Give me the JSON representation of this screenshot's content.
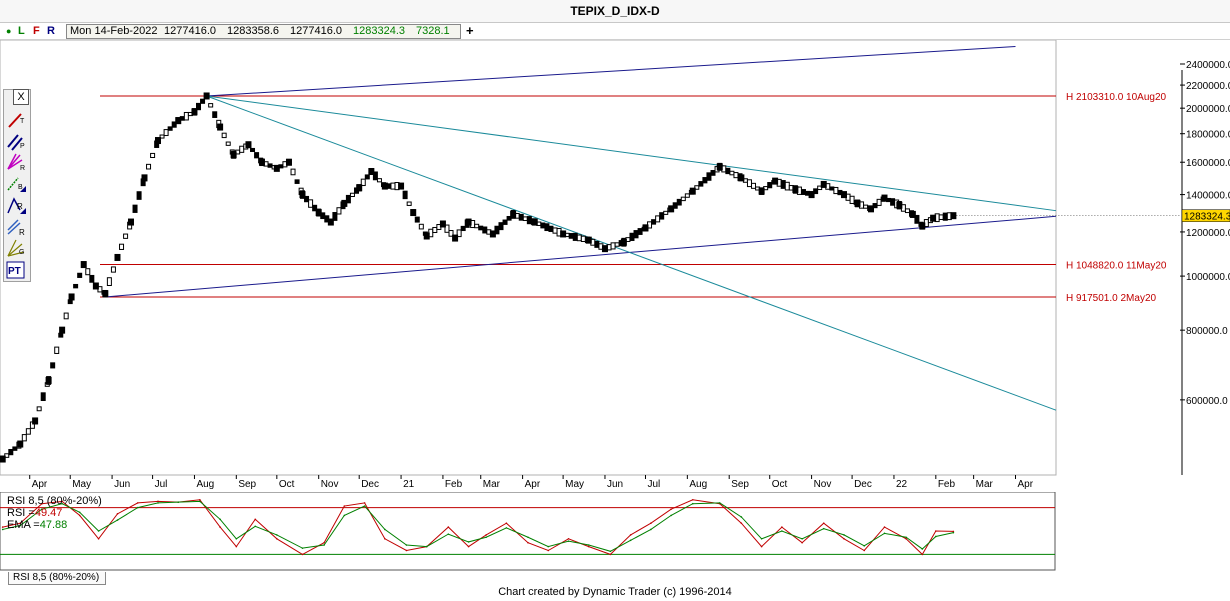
{
  "window": {
    "title": "TEPIX_D_IDX-D"
  },
  "infobar": {
    "toggles": [
      "L",
      "F",
      "R"
    ],
    "date": "Mon 14-Feb-2022",
    "open": "1277416.0",
    "high": "1283358.6",
    "low": "1277416.0",
    "close": "1283324.3",
    "change": "7328.1",
    "add_symbol": "+"
  },
  "toolbar": {
    "close_label": "X",
    "tools": [
      "trendline-tool-icon",
      "parallel-lines-tool-icon",
      "pitchfork-tool-icon",
      "box-tool-icon",
      "retracement-tool-icon",
      "projection-tool-icon",
      "gann-fan-tool-icon",
      "pt-tool-icon"
    ],
    "tool_letters": [
      "T",
      "P",
      "R",
      "B",
      "R",
      "R",
      "G",
      "PT"
    ]
  },
  "chart_data": [
    {
      "type": "line",
      "title": "",
      "xlabel": "",
      "ylabel": "",
      "y_scale": "log",
      "ylim": [
        440000,
        2650000
      ],
      "x_range": [
        "2020-03-10",
        "2022-05-01"
      ],
      "x_ticks": [
        {
          "label": "Apr",
          "date": "2020-04-01"
        },
        {
          "label": "May",
          "date": "2020-05-01"
        },
        {
          "label": "Jun",
          "date": "2020-06-01"
        },
        {
          "label": "Jul",
          "date": "2020-07-01"
        },
        {
          "label": "Aug",
          "date": "2020-08-01"
        },
        {
          "label": "Sep",
          "date": "2020-09-01"
        },
        {
          "label": "Oct",
          "date": "2020-10-01"
        },
        {
          "label": "Nov",
          "date": "2020-11-01"
        },
        {
          "label": "Dec",
          "date": "2020-12-01"
        },
        {
          "label": "21",
          "date": "2021-01-01"
        },
        {
          "label": "Feb",
          "date": "2021-02-01"
        },
        {
          "label": "Mar",
          "date": "2021-03-01"
        },
        {
          "label": "Apr",
          "date": "2021-04-01"
        },
        {
          "label": "May",
          "date": "2021-05-01"
        },
        {
          "label": "Jun",
          "date": "2021-06-01"
        },
        {
          "label": "Jul",
          "date": "2021-07-01"
        },
        {
          "label": "Aug",
          "date": "2021-08-01"
        },
        {
          "label": "Sep",
          "date": "2021-09-01"
        },
        {
          "label": "Oct",
          "date": "2021-10-01"
        },
        {
          "label": "Nov",
          "date": "2021-11-01"
        },
        {
          "label": "Dec",
          "date": "2021-12-01"
        },
        {
          "label": "22",
          "date": "2022-01-01"
        },
        {
          "label": "Feb",
          "date": "2022-02-01"
        },
        {
          "label": "Mar",
          "date": "2022-03-01"
        },
        {
          "label": "Apr",
          "date": "2022-04-01"
        }
      ],
      "y_ticks": [
        {
          "label": "2400000.0",
          "value": 2400000
        },
        {
          "label": "2200000.0",
          "value": 2200000
        },
        {
          "label": "2000000.0",
          "value": 2000000
        },
        {
          "label": "1800000.0",
          "value": 1800000
        },
        {
          "label": "1600000.0",
          "value": 1600000
        },
        {
          "label": "1400000.0",
          "value": 1400000
        },
        {
          "label": "1200000.0",
          "value": 1200000
        },
        {
          "label": "1000000.0",
          "value": 1000000
        },
        {
          "label": "800000.0",
          "value": 800000
        },
        {
          "label": "600000.0",
          "value": 600000
        }
      ],
      "price_series": [
        {
          "x": "2020-03-12",
          "y": 470000
        },
        {
          "x": "2020-03-25",
          "y": 500000
        },
        {
          "x": "2020-04-05",
          "y": 550000
        },
        {
          "x": "2020-04-15",
          "y": 650000
        },
        {
          "x": "2020-04-25",
          "y": 800000
        },
        {
          "x": "2020-05-02",
          "y": 917501
        },
        {
          "x": "2020-05-11",
          "y": 1048820
        },
        {
          "x": "2020-05-20",
          "y": 960000
        },
        {
          "x": "2020-05-27",
          "y": 930000
        },
        {
          "x": "2020-06-05",
          "y": 1080000
        },
        {
          "x": "2020-06-15",
          "y": 1250000
        },
        {
          "x": "2020-06-25",
          "y": 1500000
        },
        {
          "x": "2020-07-05",
          "y": 1750000
        },
        {
          "x": "2020-07-20",
          "y": 1900000
        },
        {
          "x": "2020-08-01",
          "y": 1970000
        },
        {
          "x": "2020-08-10",
          "y": 2103310
        },
        {
          "x": "2020-08-20",
          "y": 1850000
        },
        {
          "x": "2020-08-30",
          "y": 1650000
        },
        {
          "x": "2020-09-10",
          "y": 1720000
        },
        {
          "x": "2020-09-20",
          "y": 1600000
        },
        {
          "x": "2020-10-01",
          "y": 1560000
        },
        {
          "x": "2020-10-10",
          "y": 1600000
        },
        {
          "x": "2020-10-20",
          "y": 1400000
        },
        {
          "x": "2020-11-01",
          "y": 1300000
        },
        {
          "x": "2020-11-10",
          "y": 1250000
        },
        {
          "x": "2020-11-20",
          "y": 1350000
        },
        {
          "x": "2020-12-01",
          "y": 1440000
        },
        {
          "x": "2020-12-10",
          "y": 1540000
        },
        {
          "x": "2020-12-20",
          "y": 1450000
        },
        {
          "x": "2021-01-01",
          "y": 1450000
        },
        {
          "x": "2021-01-10",
          "y": 1300000
        },
        {
          "x": "2021-01-20",
          "y": 1180000
        },
        {
          "x": "2021-02-01",
          "y": 1240000
        },
        {
          "x": "2021-02-10",
          "y": 1170000
        },
        {
          "x": "2021-02-20",
          "y": 1250000
        },
        {
          "x": "2021-03-10",
          "y": 1190000
        },
        {
          "x": "2021-03-25",
          "y": 1290000
        },
        {
          "x": "2021-04-10",
          "y": 1250000
        },
        {
          "x": "2021-05-01",
          "y": 1190000
        },
        {
          "x": "2021-05-20",
          "y": 1160000
        },
        {
          "x": "2021-06-01",
          "y": 1120000
        },
        {
          "x": "2021-06-15",
          "y": 1150000
        },
        {
          "x": "2021-07-01",
          "y": 1220000
        },
        {
          "x": "2021-07-20",
          "y": 1320000
        },
        {
          "x": "2021-08-05",
          "y": 1420000
        },
        {
          "x": "2021-08-25",
          "y": 1570000
        },
        {
          "x": "2021-09-10",
          "y": 1500000
        },
        {
          "x": "2021-09-25",
          "y": 1420000
        },
        {
          "x": "2021-10-05",
          "y": 1480000
        },
        {
          "x": "2021-10-20",
          "y": 1430000
        },
        {
          "x": "2021-11-01",
          "y": 1400000
        },
        {
          "x": "2021-11-10",
          "y": 1460000
        },
        {
          "x": "2021-11-25",
          "y": 1400000
        },
        {
          "x": "2021-12-05",
          "y": 1350000
        },
        {
          "x": "2021-12-15",
          "y": 1320000
        },
        {
          "x": "2021-12-25",
          "y": 1380000
        },
        {
          "x": "2022-01-05",
          "y": 1340000
        },
        {
          "x": "2022-01-15",
          "y": 1290000
        },
        {
          "x": "2022-01-22",
          "y": 1230000
        },
        {
          "x": "2022-01-30",
          "y": 1270000
        },
        {
          "x": "2022-02-14",
          "y": 1283324
        }
      ],
      "trend_lines": [
        {
          "name": "upper-channel",
          "color": "#1a1a8c",
          "from": {
            "x": "2020-08-10",
            "y": 2103310
          },
          "to": {
            "x": "2022-04-01",
            "y": 2580000
          }
        },
        {
          "name": "lower-channel",
          "color": "#1a1a8c",
          "from": {
            "x": "2020-05-27",
            "y": 917501
          },
          "to": {
            "x": "2022-05-01",
            "y": 1280000
          }
        },
        {
          "name": "falling-resistance",
          "color": "#1a8a9a",
          "from": {
            "x": "2020-08-10",
            "y": 2103310
          },
          "to": {
            "x": "2022-05-01",
            "y": 1310000
          }
        },
        {
          "name": "steep-fan-line",
          "color": "#1a8a9a",
          "from": {
            "x": "2020-08-10",
            "y": 2103310
          },
          "to": {
            "x": "2022-05-01",
            "y": 575000
          }
        }
      ],
      "horizontal_levels": [
        {
          "value": 2103310,
          "label": "H 2103310.0 10Aug20",
          "color": "#c00000"
        },
        {
          "value": 1048820,
          "label": "H 1048820.0 11May20",
          "color": "#c00000"
        },
        {
          "value": 917501,
          "label": "H 917501.0 2May20",
          "color": "#c00000"
        }
      ],
      "last_price": {
        "value": 1283324.3,
        "label": "1283324.3",
        "color": "#ffd700"
      }
    },
    {
      "type": "line",
      "title": "",
      "indicator": "RSI 8,5 (80%-20%)",
      "ylim": [
        0,
        100
      ],
      "upper_band": 80,
      "lower_band": 20,
      "legend": [
        {
          "label": "RSI =",
          "value": "49.47",
          "color": "#c00000"
        },
        {
          "label": "EMA =",
          "value": "47.88",
          "color": "#008000"
        }
      ],
      "series": [
        {
          "name": "RSI",
          "color": "#c00000",
          "x": [
            "2020-03-12",
            "2020-03-25",
            "2020-04-10",
            "2020-04-25",
            "2020-05-08",
            "2020-05-22",
            "2020-06-05",
            "2020-06-20",
            "2020-07-05",
            "2020-07-20",
            "2020-08-05",
            "2020-08-20",
            "2020-09-01",
            "2020-09-15",
            "2020-10-01",
            "2020-10-20",
            "2020-11-05",
            "2020-11-20",
            "2020-12-05",
            "2020-12-20",
            "2021-01-05",
            "2021-01-20",
            "2021-02-05",
            "2021-02-20",
            "2021-03-05",
            "2021-03-20",
            "2021-04-05",
            "2021-04-20",
            "2021-05-05",
            "2021-05-20",
            "2021-06-05",
            "2021-06-20",
            "2021-07-05",
            "2021-07-20",
            "2021-08-05",
            "2021-08-25",
            "2021-09-10",
            "2021-09-25",
            "2021-10-10",
            "2021-10-25",
            "2021-11-10",
            "2021-11-25",
            "2021-12-10",
            "2021-12-25",
            "2022-01-10",
            "2022-01-22",
            "2022-02-01",
            "2022-02-14"
          ],
          "values": [
            55,
            60,
            85,
            88,
            70,
            40,
            72,
            86,
            88,
            87,
            90,
            55,
            30,
            65,
            40,
            20,
            35,
            82,
            86,
            40,
            25,
            30,
            55,
            30,
            45,
            60,
            35,
            25,
            40,
            30,
            20,
            45,
            60,
            78,
            90,
            85,
            60,
            30,
            55,
            35,
            60,
            40,
            25,
            55,
            40,
            20,
            50,
            49.47
          ]
        },
        {
          "name": "EMA",
          "color": "#008000",
          "x": [
            "2020-03-12",
            "2020-03-25",
            "2020-04-10",
            "2020-04-25",
            "2020-05-08",
            "2020-05-22",
            "2020-06-05",
            "2020-06-20",
            "2020-07-05",
            "2020-07-20",
            "2020-08-05",
            "2020-08-20",
            "2020-09-01",
            "2020-09-15",
            "2020-10-01",
            "2020-10-20",
            "2020-11-05",
            "2020-11-20",
            "2020-12-05",
            "2020-12-20",
            "2021-01-05",
            "2021-01-20",
            "2021-02-05",
            "2021-02-20",
            "2021-03-05",
            "2021-03-20",
            "2021-04-05",
            "2021-04-20",
            "2021-05-05",
            "2021-05-20",
            "2021-06-05",
            "2021-06-20",
            "2021-07-05",
            "2021-07-20",
            "2021-08-05",
            "2021-08-25",
            "2021-09-10",
            "2021-09-25",
            "2021-10-10",
            "2021-10-25",
            "2021-11-10",
            "2021-11-25",
            "2021-12-10",
            "2021-12-25",
            "2022-01-10",
            "2022-01-22",
            "2022-02-01",
            "2022-02-14"
          ],
          "values": [
            52,
            57,
            78,
            85,
            74,
            50,
            64,
            80,
            86,
            87,
            88,
            65,
            40,
            56,
            45,
            28,
            32,
            70,
            82,
            52,
            32,
            30,
            46,
            36,
            42,
            54,
            42,
            30,
            37,
            32,
            24,
            38,
            52,
            70,
            85,
            86,
            68,
            40,
            50,
            40,
            53,
            45,
            31,
            47,
            42,
            27,
            43,
            47.88
          ]
        }
      ]
    }
  ],
  "rsi_panel": {
    "tab_label": "RSI 8,5 (80%-20%)",
    "header": "RSI 8,5 (80%-20%)"
  },
  "footer": {
    "credit": "Chart created by Dynamic Trader  (c) 1996-2014"
  }
}
